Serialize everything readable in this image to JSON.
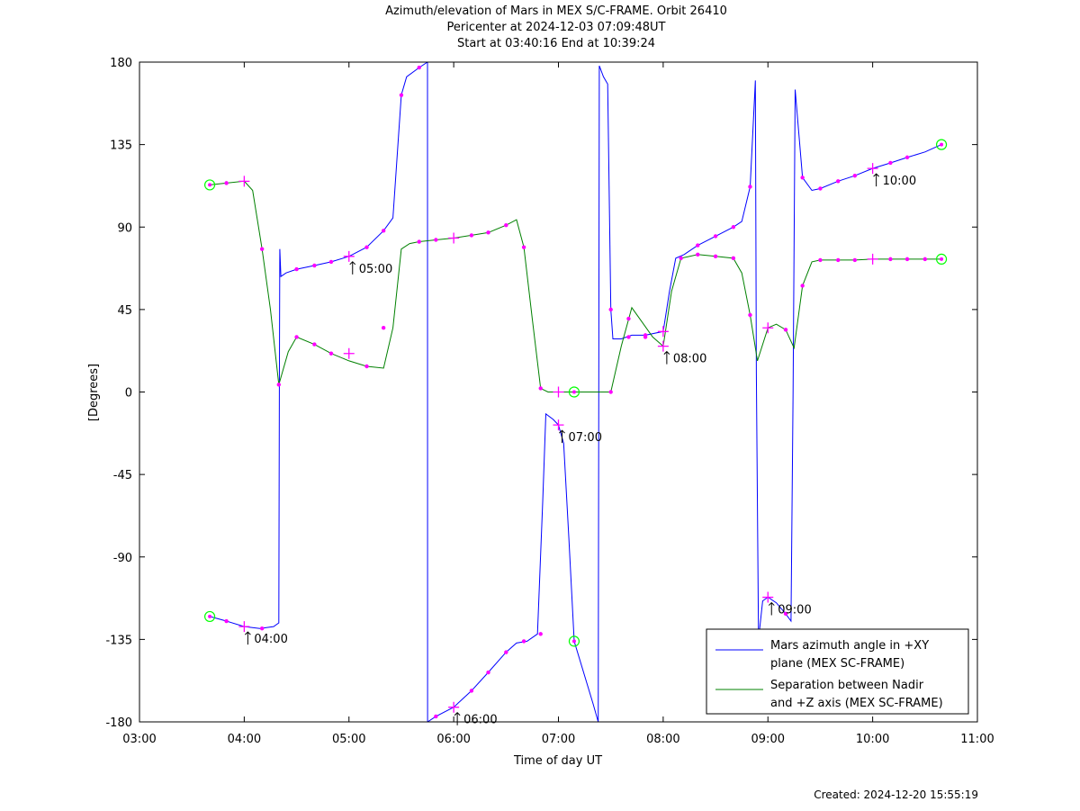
{
  "title_lines": [
    "Azimuth/elevation of Mars in MEX S/C-FRAME.  Orbit 26410",
    "Pericenter at 2024-12-03 07:09:48UT",
    "Start at 03:40:16 End at 10:39:24"
  ],
  "footer": "Created: 2024-12-20 15:55:19",
  "chart_data": {
    "type": "line",
    "xlabel": "Time of day UT",
    "ylabel": "[Degrees]",
    "xlim": [
      3.0,
      11.0
    ],
    "ylim": [
      -180,
      180
    ],
    "xticks": [
      {
        "v": 3,
        "label": "03:00"
      },
      {
        "v": 4,
        "label": "04:00"
      },
      {
        "v": 5,
        "label": "05:00"
      },
      {
        "v": 6,
        "label": "06:00"
      },
      {
        "v": 7,
        "label": "07:00"
      },
      {
        "v": 8,
        "label": "08:00"
      },
      {
        "v": 9,
        "label": "09:00"
      },
      {
        "v": 10,
        "label": "10:00"
      },
      {
        "v": 11,
        "label": "11:00"
      }
    ],
    "yticks": [
      {
        "v": 180,
        "label": "180"
      },
      {
        "v": 135,
        "label": "135"
      },
      {
        "v": 90,
        "label": "90"
      },
      {
        "v": 45,
        "label": "45"
      },
      {
        "v": 0,
        "label": "0"
      },
      {
        "v": -45,
        "label": "-45"
      },
      {
        "v": -90,
        "label": "-90"
      },
      {
        "v": -135,
        "label": "-135"
      },
      {
        "v": -180,
        "label": "-180"
      }
    ],
    "grid": false,
    "legend_position": "bottom-right",
    "colors": {
      "azimuth": "#0000ff",
      "separation": "#008000",
      "markers": "#ff00ff",
      "endpoints": "#00ff00"
    },
    "series": [
      {
        "name": "Mars azimuth angle in +XY plane (MEX SC-FRAME)",
        "legend_lines": [
          "Mars azimuth angle in +XY",
          "plane (MEX SC-FRAME)"
        ],
        "color": "#0000ff",
        "points": [
          [
            3.671,
            -122.5
          ],
          [
            3.83,
            -125
          ],
          [
            4.0,
            -128
          ],
          [
            4.15,
            -129
          ],
          [
            4.28,
            -128
          ],
          [
            4.33,
            -126
          ],
          [
            4.335,
            0
          ],
          [
            4.34,
            78
          ],
          [
            4.35,
            63
          ],
          [
            4.4,
            65
          ],
          [
            4.5,
            67
          ],
          [
            4.67,
            69
          ],
          [
            4.83,
            71
          ],
          [
            5.0,
            74
          ],
          [
            5.17,
            79
          ],
          [
            5.33,
            88
          ],
          [
            5.42,
            95
          ],
          [
            5.5,
            162
          ],
          [
            5.55,
            172
          ],
          [
            5.67,
            177
          ],
          [
            5.75,
            180
          ],
          [
            5.751,
            -180
          ],
          [
            5.83,
            -177
          ],
          [
            6.0,
            -172
          ],
          [
            6.17,
            -163
          ],
          [
            6.33,
            -153
          ],
          [
            6.5,
            -142
          ],
          [
            6.6,
            -137
          ],
          [
            6.7,
            -136
          ],
          [
            6.8,
            -132
          ],
          [
            6.85,
            -60
          ],
          [
            6.88,
            -12
          ],
          [
            6.95,
            -15
          ],
          [
            7.0,
            -18
          ],
          [
            7.05,
            -28
          ],
          [
            7.1,
            -80
          ],
          [
            7.15,
            -136
          ],
          [
            7.33,
            -170
          ],
          [
            7.38,
            -180
          ],
          [
            7.39,
            178
          ],
          [
            7.43,
            172
          ],
          [
            7.47,
            168
          ],
          [
            7.5,
            45
          ],
          [
            7.52,
            29
          ],
          [
            7.6,
            29
          ],
          [
            7.7,
            31
          ],
          [
            7.83,
            31
          ],
          [
            8.0,
            33
          ],
          [
            8.06,
            55
          ],
          [
            8.12,
            73
          ],
          [
            8.2,
            75
          ],
          [
            8.33,
            80
          ],
          [
            8.5,
            85
          ],
          [
            8.67,
            90
          ],
          [
            8.75,
            93
          ],
          [
            8.83,
            112
          ],
          [
            8.88,
            170
          ],
          [
            8.89,
            10
          ],
          [
            8.91,
            -135
          ],
          [
            8.95,
            -114
          ],
          [
            9.0,
            -112
          ],
          [
            9.08,
            -115
          ],
          [
            9.17,
            -121
          ],
          [
            9.22,
            -125
          ],
          [
            9.24,
            0
          ],
          [
            9.26,
            165
          ],
          [
            9.33,
            117
          ],
          [
            9.42,
            110
          ],
          [
            9.5,
            111
          ],
          [
            9.67,
            115
          ],
          [
            9.83,
            118
          ],
          [
            10.0,
            122
          ],
          [
            10.17,
            125
          ],
          [
            10.33,
            128
          ],
          [
            10.5,
            131
          ],
          [
            10.657,
            135
          ]
        ]
      },
      {
        "name": "Separation between Nadir and +Z axis (MEX SC-FRAME)",
        "legend_lines": [
          "Separation between Nadir",
          "and +Z axis (MEX SC-FRAME)"
        ],
        "color": "#008000",
        "points": [
          [
            3.671,
            113
          ],
          [
            3.83,
            114
          ],
          [
            4.0,
            115
          ],
          [
            4.08,
            110
          ],
          [
            4.17,
            78
          ],
          [
            4.25,
            45
          ],
          [
            4.33,
            4
          ],
          [
            4.42,
            22
          ],
          [
            4.5,
            30
          ],
          [
            4.67,
            26
          ],
          [
            4.83,
            21
          ],
          [
            5.0,
            17
          ],
          [
            5.17,
            14
          ],
          [
            5.33,
            13
          ],
          [
            5.42,
            35
          ],
          [
            5.5,
            78
          ],
          [
            5.58,
            81
          ],
          [
            5.67,
            82
          ],
          [
            5.83,
            83
          ],
          [
            6.0,
            84
          ],
          [
            6.17,
            85.5
          ],
          [
            6.33,
            87
          ],
          [
            6.5,
            91
          ],
          [
            6.6,
            94
          ],
          [
            6.67,
            79
          ],
          [
            6.75,
            40
          ],
          [
            6.83,
            2
          ],
          [
            6.9,
            0
          ],
          [
            7.0,
            0
          ],
          [
            7.17,
            0
          ],
          [
            7.33,
            0
          ],
          [
            7.5,
            0
          ],
          [
            7.6,
            25
          ],
          [
            7.7,
            46
          ],
          [
            7.8,
            38
          ],
          [
            7.9,
            30
          ],
          [
            8.0,
            25
          ],
          [
            8.08,
            55
          ],
          [
            8.17,
            73
          ],
          [
            8.33,
            75
          ],
          [
            8.5,
            74
          ],
          [
            8.67,
            73
          ],
          [
            8.75,
            65
          ],
          [
            8.83,
            42
          ],
          [
            8.9,
            17
          ],
          [
            9.0,
            35
          ],
          [
            9.08,
            37
          ],
          [
            9.17,
            34
          ],
          [
            9.25,
            24
          ],
          [
            9.33,
            58
          ],
          [
            9.42,
            71
          ],
          [
            9.5,
            72
          ],
          [
            9.67,
            72
          ],
          [
            9.83,
            72
          ],
          [
            10.0,
            72.5
          ],
          [
            10.17,
            72.5
          ],
          [
            10.33,
            72.5
          ],
          [
            10.5,
            72.5
          ],
          [
            10.657,
            72.5
          ]
        ]
      }
    ],
    "hour_annotations": [
      {
        "x": 4.0,
        "y": -128,
        "label": "04:00"
      },
      {
        "x": 5.0,
        "y": 74,
        "label": "05:00"
      },
      {
        "x": 6.0,
        "y": -172,
        "label": "06:00"
      },
      {
        "x": 7.0,
        "y": -18,
        "label": "07:00"
      },
      {
        "x": 8.0,
        "y": 25,
        "label": "08:00"
      },
      {
        "x": 9.0,
        "y": -112,
        "label": "09:00"
      },
      {
        "x": 10.0,
        "y": 122,
        "label": "10:00"
      }
    ],
    "plus_markers": [
      [
        4.0,
        115
      ],
      [
        4.0,
        -128
      ],
      [
        5.0,
        74
      ],
      [
        5.0,
        21
      ],
      [
        6.0,
        84
      ],
      [
        6.0,
        -172
      ],
      [
        7.0,
        -18
      ],
      [
        7.0,
        0
      ],
      [
        8.0,
        33
      ],
      [
        8.0,
        25
      ],
      [
        9.0,
        -112
      ],
      [
        9.0,
        35
      ],
      [
        10.0,
        122
      ],
      [
        10.0,
        72.5
      ]
    ],
    "dot_markers": [
      [
        3.83,
        -125
      ],
      [
        4.17,
        -129
      ],
      [
        4.33,
        4
      ],
      [
        4.5,
        67
      ],
      [
        4.67,
        69
      ],
      [
        4.83,
        71
      ],
      [
        5.17,
        79
      ],
      [
        5.33,
        88
      ],
      [
        5.5,
        162
      ],
      [
        5.67,
        177
      ],
      [
        5.83,
        -177
      ],
      [
        6.17,
        -163
      ],
      [
        6.33,
        -153
      ],
      [
        6.5,
        -142
      ],
      [
        6.67,
        -136
      ],
      [
        6.83,
        -132
      ],
      [
        7.5,
        45
      ],
      [
        7.67,
        30
      ],
      [
        7.83,
        31
      ],
      [
        8.17,
        73
      ],
      [
        8.33,
        80
      ],
      [
        8.5,
        85
      ],
      [
        8.67,
        90
      ],
      [
        8.83,
        112
      ],
      [
        9.17,
        -121
      ],
      [
        9.33,
        117
      ],
      [
        9.5,
        111
      ],
      [
        9.67,
        115
      ],
      [
        9.83,
        118
      ],
      [
        10.17,
        125
      ],
      [
        10.33,
        128
      ],
      [
        3.83,
        114
      ],
      [
        4.17,
        78
      ],
      [
        4.5,
        30
      ],
      [
        4.67,
        26
      ],
      [
        4.83,
        21
      ],
      [
        5.17,
        14
      ],
      [
        5.33,
        35
      ],
      [
        5.67,
        82
      ],
      [
        5.83,
        83
      ],
      [
        6.17,
        85.5
      ],
      [
        6.33,
        87
      ],
      [
        6.5,
        91
      ],
      [
        6.67,
        79
      ],
      [
        6.83,
        2
      ],
      [
        7.5,
        0
      ],
      [
        7.67,
        40
      ],
      [
        7.83,
        30
      ],
      [
        8.33,
        75
      ],
      [
        8.5,
        74
      ],
      [
        8.67,
        73
      ],
      [
        8.83,
        42
      ],
      [
        9.17,
        34
      ],
      [
        9.33,
        58
      ],
      [
        9.5,
        72
      ],
      [
        9.67,
        72
      ],
      [
        9.83,
        72
      ],
      [
        10.17,
        72.5
      ],
      [
        10.33,
        72.5
      ],
      [
        10.5,
        72.5
      ]
    ],
    "circle_markers": [
      [
        3.671,
        113
      ],
      [
        3.671,
        -122.5
      ],
      [
        7.15,
        0
      ],
      [
        7.15,
        -136
      ],
      [
        10.657,
        135
      ],
      [
        10.657,
        72.5
      ]
    ]
  }
}
